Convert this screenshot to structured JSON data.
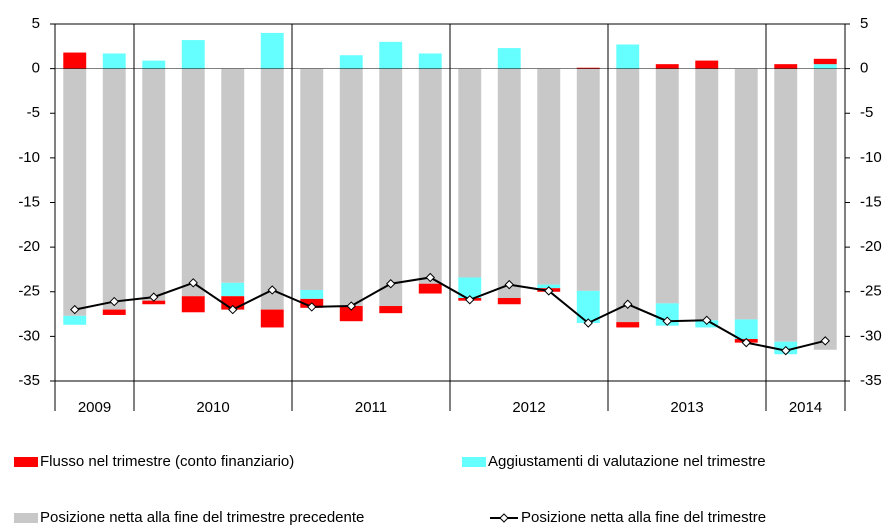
{
  "chart_data": {
    "type": "stacked-bar-line",
    "categories": [
      "2009",
      null,
      "2010",
      null,
      null,
      null,
      "2011",
      null,
      null,
      null,
      "2012",
      null,
      null,
      null,
      "2013",
      null,
      null,
      null,
      "2014",
      null
    ],
    "series": [
      {
        "name": "Flusso nel trimestre (conto finanziario)",
        "color": "#ff0000",
        "kind": "bar",
        "values": [
          1.8,
          -0.6,
          -0.4,
          -1.8,
          -1.5,
          -2.0,
          -1.0,
          -1.7,
          -0.8,
          -1.1,
          -0.3,
          -0.7,
          -0.4,
          0.1,
          -0.6,
          0.5,
          0.9,
          -0.4,
          0.5,
          0.6
        ]
      },
      {
        "name": "Aggiustamenti di valutazione nel trimestre",
        "color": "#66ffff",
        "kind": "bar",
        "values": [
          -1.0,
          1.7,
          0.9,
          3.2,
          -1.5,
          4.0,
          -1.0,
          1.5,
          3.0,
          1.7,
          -2.3,
          2.3,
          -0.4,
          -3.6,
          2.7,
          -2.5,
          -0.8,
          -2.2,
          -1.4,
          0.5
        ]
      },
      {
        "name": "Posizione netta alla fine del trimestre precedente",
        "color": "#c8c8c8",
        "kind": "bar",
        "values": [
          -27.7,
          -27.0,
          -26.0,
          -25.5,
          -24.0,
          -27.0,
          -24.8,
          -26.6,
          -26.6,
          -24.1,
          -23.4,
          -25.7,
          -24.2,
          -24.9,
          -28.4,
          -26.3,
          -28.2,
          -28.1,
          -30.6,
          -31.5
        ]
      },
      {
        "name": "Posizione netta alla fine del trimestre",
        "color": "#000000",
        "kind": "line",
        "values": [
          -27.0,
          -26.1,
          -25.6,
          -24.0,
          -27.0,
          -24.8,
          -26.7,
          -26.6,
          -24.1,
          -23.4,
          -25.9,
          -24.2,
          -24.9,
          -28.5,
          -26.4,
          -28.3,
          -28.2,
          -30.7,
          -31.6,
          -30.5
        ]
      }
    ],
    "ylim": [
      -35,
      5
    ],
    "yticks": [
      -35,
      -30,
      -25,
      -20,
      -15,
      -10,
      -5,
      0,
      5
    ]
  }
}
